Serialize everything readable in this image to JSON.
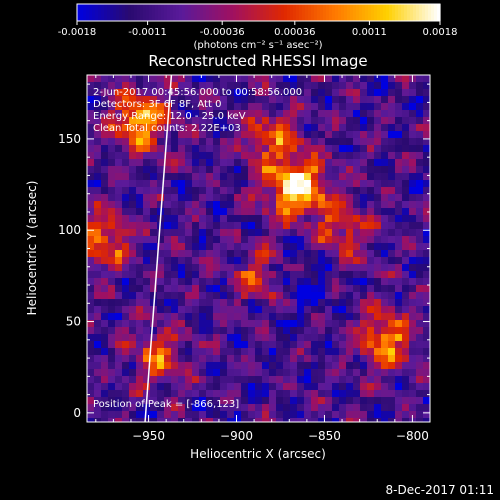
{
  "chart_data": {
    "type": "heatmap",
    "title": "Reconstructed RHESSI Image",
    "xlabel": "Heliocentric X (arcsec)",
    "ylabel": "Heliocentric Y (arcsec)",
    "xlim": [
      -985,
      -790
    ],
    "ylim": [
      -5,
      185
    ],
    "xticks": [
      -950,
      -900,
      -850,
      -800
    ],
    "yticks": [
      0,
      50,
      100,
      150
    ],
    "colorbar": {
      "ticks": [
        -0.0018,
        -0.0011,
        -0.00036,
        0.00036,
        0.0011,
        0.0018
      ],
      "tick_labels": [
        "-0.0018",
        "-0.0011",
        "-0.00036",
        "0.00036",
        "0.0011",
        "0.0018"
      ],
      "units_label": "(photons cm⁻² s⁻¹ asec⁻²)",
      "colormap": [
        "#0000e0",
        "#2a0a70",
        "#5a1a9a",
        "#a01060",
        "#e02800",
        "#ff7a00",
        "#ffd000",
        "#ffffff"
      ]
    },
    "annotations": {
      "time_range": "2-Jun-2017 00:45:56.000 to 00:58:56.000",
      "detectors": "Detectors: 3F 6F 8F, Att 0",
      "energy_range": "Energy Range: 12.0 - 25.0 keV",
      "clean_counts": "Clean     Total counts: 2.22E+03",
      "peak_position": "Position of Peak = [-866,123]"
    },
    "limb_line": {
      "x": [
        -952,
        -937
      ],
      "y": [
        -5,
        185
      ]
    },
    "peak": [
      -866,
      123
    ],
    "bright_regions": [
      {
        "x": -866,
        "y": 123,
        "strength": 1.0
      },
      {
        "x": -955,
        "y": 160,
        "strength": 0.75
      },
      {
        "x": -975,
        "y": 95,
        "strength": 0.6
      },
      {
        "x": -885,
        "y": 75,
        "strength": 0.55
      },
      {
        "x": -840,
        "y": 100,
        "strength": 0.5
      },
      {
        "x": -815,
        "y": 40,
        "strength": 0.65
      },
      {
        "x": -945,
        "y": 30,
        "strength": 0.45
      },
      {
        "x": -880,
        "y": 150,
        "strength": 0.5
      }
    ]
  },
  "footer_date": "8-Dec-2017 01:11"
}
